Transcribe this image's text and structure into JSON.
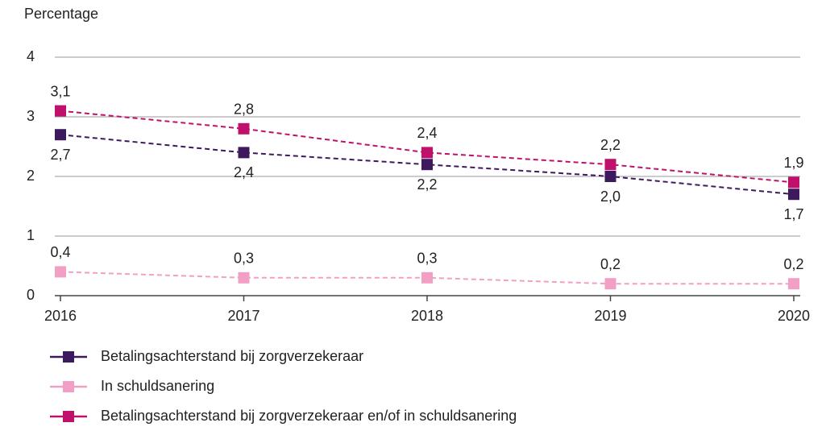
{
  "chart_data": {
    "type": "line",
    "y_axis_label": "Percentage",
    "x": [
      2016,
      2017,
      2018,
      2019,
      2020
    ],
    "xlim": [
      2016,
      2020
    ],
    "xticks": [
      2016,
      2017,
      2018,
      2019,
      2020
    ],
    "ylim": [
      0,
      4
    ],
    "yticks": [
      0,
      1,
      2,
      3,
      4
    ],
    "grid": true,
    "series": [
      {
        "name": "Betalingsachterstand bij zorgverzekeraar",
        "color": "#3d1a5e",
        "values": [
          2.7,
          2.4,
          2.2,
          2.0,
          1.7
        ],
        "value_labels": [
          "2,7",
          "2,4",
          "2,2",
          "2,0",
          "1,7"
        ]
      },
      {
        "name": "In schuldsanering",
        "color": "#f29fc5",
        "values": [
          0.4,
          0.3,
          0.3,
          0.2,
          0.2
        ],
        "value_labels": [
          "0,4",
          "0,3",
          "0,3",
          "0,2",
          "0,2"
        ]
      },
      {
        "name": "Betalingsachterstand bij zorgverzekeraar en/of in schuldsanering",
        "color": "#c0106c",
        "values": [
          3.1,
          2.8,
          2.4,
          2.2,
          1.9
        ],
        "value_labels": [
          "3,1",
          "2,8",
          "2,4",
          "2,2",
          "1,9"
        ]
      }
    ]
  }
}
